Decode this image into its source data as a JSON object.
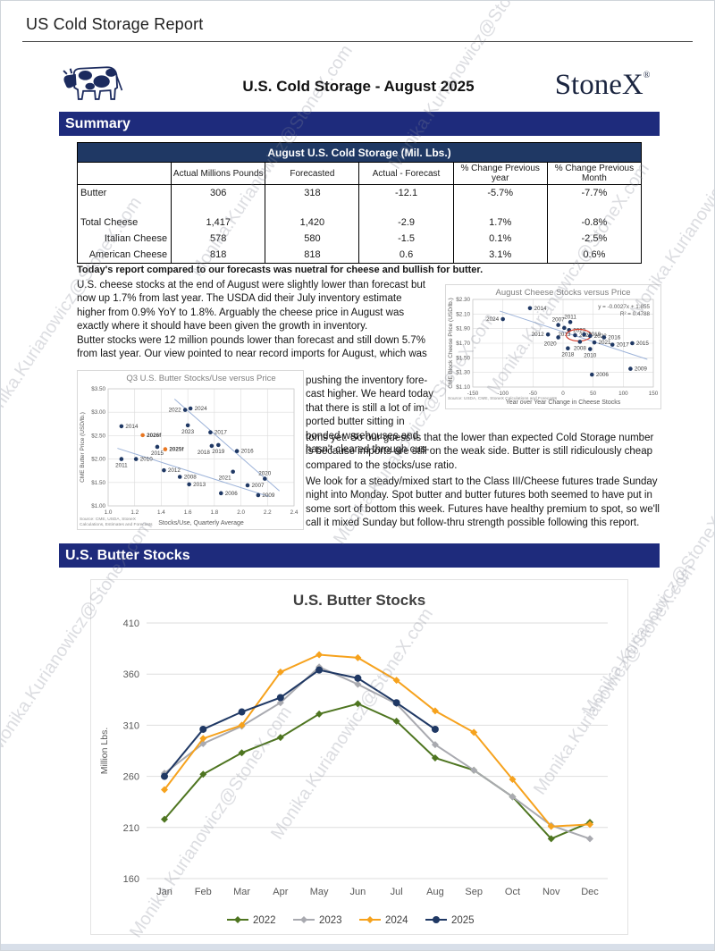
{
  "page": {
    "report_title": "US Cold Storage Report",
    "doc_title": "U.S. Cold Storage - August 2025",
    "brand": "StoneX",
    "brand_reg": "®",
    "watermark": "Monika.Kurianowicz@StoneX.com"
  },
  "sections": {
    "summary": "Summary",
    "butter_stocks": "U.S. Butter Stocks"
  },
  "table": {
    "title": "August U.S. Cold Storage (Mil. Lbs.)",
    "columns": [
      "",
      "Actual Millions Pounds",
      "Forecasted",
      "Actual - Forecast",
      "% Change Previous year",
      "% Change Previous Month"
    ],
    "rows": [
      {
        "label": "Butter",
        "indent": false,
        "spacer": false,
        "values": [
          "306",
          "318",
          "-12.1",
          "-5.7%",
          "-7.7%"
        ]
      },
      {
        "label": "",
        "indent": false,
        "spacer": true,
        "values": [
          "",
          "",
          "",
          "",
          ""
        ]
      },
      {
        "label": "Total Cheese",
        "indent": false,
        "spacer": false,
        "values": [
          "1,417",
          "1,420",
          "-2.9",
          "1.7%",
          "-0.8%"
        ]
      },
      {
        "label": "Italian Cheese",
        "indent": true,
        "spacer": false,
        "values": [
          "578",
          "580",
          "-1.5",
          "0.1%",
          "-2.5%"
        ]
      },
      {
        "label": "American Cheese",
        "indent": true,
        "spacer": false,
        "values": [
          "818",
          "818",
          "0.6",
          "3.1%",
          "0.6%"
        ]
      }
    ]
  },
  "commentary": {
    "lead": "Today's report compared to our forecasts was nuetral for cheese and bullish for butter.",
    "p1": "U.S. cheese stocks at the end of August were slightly lower than forecast but now up 1.7% from last year. The USDA did their July inventory estimate higher from 0.9% YoY to 1.8%. Arguably the cheese price in August was exactly where it should have been given the growth in inventory.",
    "p2a": "Butter stocks were 12 million pounds lower than forecast and still down 5.7% from last year. Our view pointed to near record imports for August, which was",
    "p2b": "pushing the inventory fore-cast higher. We heard today that there is still a lot of im-ported butter sitting in bonded warehouses and hasn't cleared through cus-",
    "p2c": "toms yet. So our guess is that the lower than expected Cold Storage number is because imports are still on the weak side. Butter is still ridiculously cheap compared to the stocks/use ratio.",
    "p3": "We look for a steady/mixed start to the Class III/Cheese futures trade Sunday night into Monday. Spot butter and butter futures both seemed to have put in some sort of bottom this week. Futures have healthy premium to spot, so we'll call it mixed Sunday but follow-thru strength possible following this report."
  },
  "chart_data": [
    {
      "type": "scatter",
      "title": "Q3 U.S. Butter Stocks/Use versus Price",
      "xlabel": "Stocks/Use, Quarterly Average",
      "ylabel": "CME Butter Price (USD/lb.)",
      "source": "Source: CME, USDA, StoneX\nCalculations, Estimates and Forecasts",
      "xlim": [
        1.0,
        2.4
      ],
      "xstep": 0.2,
      "ylim": [
        1.0,
        3.5
      ],
      "ystep": 0.5,
      "y_prefix": "$",
      "y_decimals": 2,
      "x_decimals": 1,
      "point_color": "#1f3864",
      "forecast_color": "#e87722",
      "trend_color": "#9db3d9",
      "trendlines": [
        [
          1.5,
          3.28,
          2.29,
          1.32
        ],
        [
          1.07,
          2.23,
          2.21,
          1.2
        ]
      ],
      "points": [
        {
          "label": "2014",
          "x": 1.1,
          "y": 2.7,
          "side": "right"
        },
        {
          "label": "2011",
          "x": 1.1,
          "y": 2.0,
          "side": "below"
        },
        {
          "label": "2010",
          "x": 1.21,
          "y": 2.0,
          "side": "right"
        },
        {
          "label": "2026f",
          "x": 1.26,
          "y": 2.51,
          "side": "right",
          "forecast": true
        },
        {
          "label": "2015",
          "x": 1.37,
          "y": 2.26,
          "side": "below"
        },
        {
          "label": "2025f",
          "x": 1.43,
          "y": 2.21,
          "side": "right",
          "forecast": true
        },
        {
          "label": "2012",
          "x": 1.42,
          "y": 1.76,
          "side": "right"
        },
        {
          "label": "2008",
          "x": 1.54,
          "y": 1.62,
          "side": "right"
        },
        {
          "label": "2013",
          "x": 1.61,
          "y": 1.46,
          "side": "right"
        },
        {
          "label": "2022",
          "x": 1.58,
          "y": 3.05,
          "side": "left"
        },
        {
          "label": "2024",
          "x": 1.62,
          "y": 3.08,
          "side": "right"
        },
        {
          "label": "2023",
          "x": 1.6,
          "y": 2.72,
          "side": "below"
        },
        {
          "label": "2017",
          "x": 1.77,
          "y": 2.57,
          "side": "right"
        },
        {
          "label": "2018",
          "x": 1.78,
          "y": 2.28,
          "side": "below-left"
        },
        {
          "label": "2019",
          "x": 1.83,
          "y": 2.3,
          "side": "below"
        },
        {
          "label": "2016",
          "x": 1.97,
          "y": 2.17,
          "side": "right"
        },
        {
          "label": "2021",
          "x": 1.94,
          "y": 1.73,
          "side": "below-left"
        },
        {
          "label": "2020",
          "x": 2.18,
          "y": 1.58,
          "side": "above"
        },
        {
          "label": "2007",
          "x": 2.05,
          "y": 1.44,
          "side": "right"
        },
        {
          "label": "2006",
          "x": 1.85,
          "y": 1.27,
          "side": "right"
        },
        {
          "label": "2009",
          "x": 2.13,
          "y": 1.23,
          "side": "right"
        }
      ]
    },
    {
      "type": "scatter",
      "title": "August Cheese Stocks versus Price",
      "xlabel": "Year over Year Change in Cheese Stocks",
      "ylabel": "CME Block Cheese Price (USD/lb.)",
      "source": "Source: USDA, CME, StoneX Calculations and Forecasts",
      "equation": "y = -0.0027x + 1.855",
      "r2": "R² = 0.4788",
      "xlim": [
        -150,
        150
      ],
      "xstep": 50,
      "ylim": [
        1.1,
        2.3
      ],
      "ystep": 0.2,
      "y_prefix": "$",
      "y_decimals": 2,
      "x_decimals": 0,
      "point_color": "#1f3864",
      "forecast_color": "#e87722",
      "trend_color": "#9db3d9",
      "highlight": "2025",
      "highlight_color": "#d43b2a",
      "trendlines": [
        [
          -105,
          2.14,
          140,
          1.48
        ]
      ],
      "points": [
        {
          "label": "2024",
          "x": -100,
          "y": 2.03,
          "side": "left"
        },
        {
          "label": "2014",
          "x": -55,
          "y": 2.18,
          "side": "right"
        },
        {
          "label": "2007",
          "x": -8,
          "y": 1.95,
          "side": "above"
        },
        {
          "label": "2011",
          "x": 12,
          "y": 1.99,
          "side": "above"
        },
        {
          "label": "2013",
          "x": 2,
          "y": 1.91,
          "side": "below"
        },
        {
          "label": "2023",
          "x": 10,
          "y": 1.88,
          "side": "right"
        },
        {
          "label": "2012",
          "x": -25,
          "y": 1.82,
          "side": "left"
        },
        {
          "label": "2020",
          "x": -8,
          "y": 1.78,
          "side": "below-left"
        },
        {
          "label": "2025",
          "x": 20,
          "y": 1.81,
          "side": "right"
        },
        {
          "label": "2019",
          "x": 35,
          "y": 1.82,
          "side": "right"
        },
        {
          "label": "2022",
          "x": 45,
          "y": 1.8,
          "side": "right"
        },
        {
          "label": "2016",
          "x": 68,
          "y": 1.78,
          "side": "right"
        },
        {
          "label": "2008",
          "x": 28,
          "y": 1.72,
          "side": "below"
        },
        {
          "label": "2021",
          "x": 52,
          "y": 1.71,
          "side": "right"
        },
        {
          "label": "2017",
          "x": 82,
          "y": 1.68,
          "side": "right"
        },
        {
          "label": "2015",
          "x": 115,
          "y": 1.7,
          "side": "right"
        },
        {
          "label": "2018",
          "x": 8,
          "y": 1.63,
          "side": "below"
        },
        {
          "label": "2010",
          "x": 45,
          "y": 1.62,
          "side": "below"
        },
        {
          "label": "2006",
          "x": 48,
          "y": 1.27,
          "side": "right"
        },
        {
          "label": "2009",
          "x": 112,
          "y": 1.35,
          "side": "right"
        }
      ]
    },
    {
      "type": "line",
      "title": "U.S. Butter Stocks",
      "ylabel": "Million Lbs.",
      "categories": [
        "Jan",
        "Feb",
        "Mar",
        "Apr",
        "May",
        "Jun",
        "Jul",
        "Aug",
        "Sep",
        "Oct",
        "Nov",
        "Dec"
      ],
      "ylim": [
        160,
        410
      ],
      "ystep": 50,
      "series": [
        {
          "name": "2022",
          "color": "#4e7520",
          "marker": "diamond",
          "values": [
            218,
            262,
            283,
            298,
            321,
            331,
            314,
            278,
            266,
            240,
            199,
            215
          ]
        },
        {
          "name": "2023",
          "color": "#a9aab0",
          "marker": "diamond",
          "values": [
            263,
            292,
            309,
            332,
            367,
            350,
            331,
            291,
            266,
            240,
            212,
            199
          ]
        },
        {
          "name": "2024",
          "color": "#f6a21d",
          "marker": "diamond",
          "values": [
            247,
            297,
            310,
            362,
            379,
            376,
            354,
            324,
            303,
            257,
            211,
            213
          ]
        },
        {
          "name": "2025",
          "color": "#1f3864",
          "marker": "circle",
          "values": [
            260,
            306,
            323,
            337,
            364,
            356,
            332,
            306,
            null,
            null,
            null,
            null
          ]
        }
      ],
      "legend_position": "bottom"
    }
  ]
}
